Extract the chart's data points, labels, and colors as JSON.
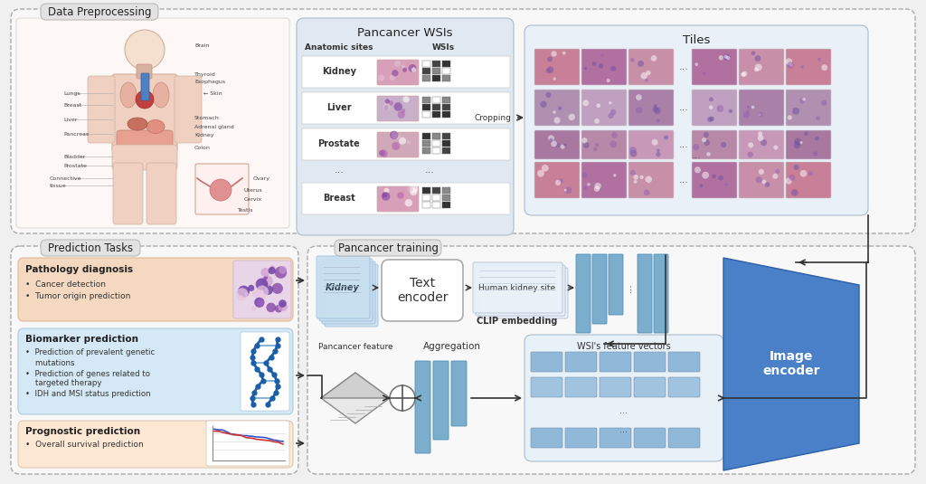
{
  "bg_color": "#f0f0f0",
  "white": "#ffffff",
  "light_blue_panel": "#dce8f5",
  "medium_blue": "#7aaecc",
  "dark_blue": "#4a80b0",
  "image_encoder_blue": "#4a80c8",
  "light_orange": "#f5d8c0",
  "light_peach": "#fde8d4",
  "light_blue_box": "#cce0f0",
  "tab_gray": "#d8d8d8",
  "dashed_border": "#999999",
  "solid_border": "#aaaaaa",
  "dp_label": "Data Preprocessing",
  "wsi_label": "Pancancer WSIs",
  "tiles_label": "Tiles",
  "pt_label": "Pancancer training",
  "pred_label": "Prediction Tasks",
  "anatomic_label": "Anatomic sites",
  "wsis_label": "WSIs",
  "wsi_rows": [
    "Kidney",
    "Liver",
    "Prostate",
    "",
    "Breast"
  ],
  "path_diag_title": "Pathology diagnosis",
  "path_diag_items": [
    "Cancer detection",
    "Tumor origin prediction"
  ],
  "bio_title": "Biomarker prediction",
  "bio_items_line1": "Prediction of prevalent genetic",
  "bio_items_line2": "mutations",
  "bio_items_line3": "Prediction of genes related to",
  "bio_items_line4": "targeted therapy",
  "bio_items_line5": "IDH and MSI status prediction",
  "prog_title": "Prognostic prediction",
  "prog_item": "Overall survival prediction",
  "text_encoder_label": "Text\nencoder",
  "kidney_label": "Kidney",
  "clip_label": "CLIP embedding",
  "human_kidney_label": "Human kidney site",
  "aggregation_label": "Aggregation",
  "wsi_feature_label": "WSI's feature vectors",
  "pancancer_feature_label": "Pancancer feature",
  "image_encoder_label": "Image\nencoder",
  "cropping_label": "Cropping"
}
